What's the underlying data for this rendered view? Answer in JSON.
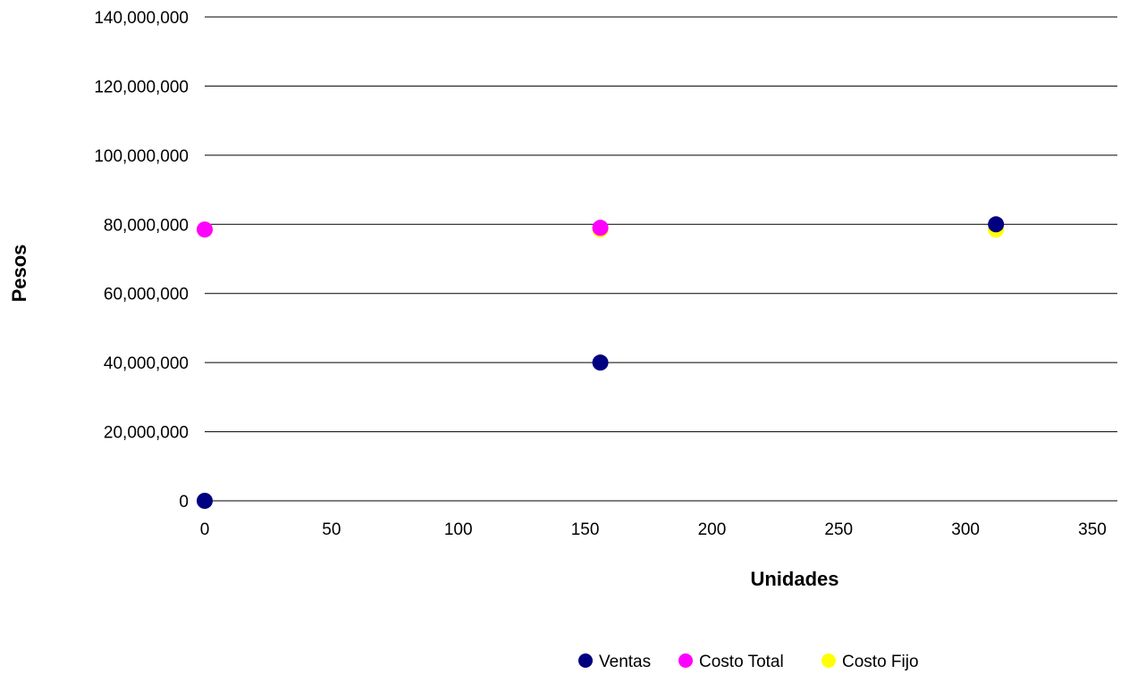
{
  "chart_data": {
    "type": "scatter",
    "title": "",
    "xlabel": "Unidades",
    "ylabel": "Pesos",
    "xlim": [
      0,
      350
    ],
    "ylim": [
      0,
      140000000
    ],
    "x_ticks": [
      0,
      50,
      100,
      150,
      200,
      250,
      300,
      350
    ],
    "y_ticks": [
      0,
      20000000,
      40000000,
      60000000,
      80000000,
      100000000,
      120000000,
      140000000
    ],
    "x_tick_labels": [
      "0",
      "50",
      "100",
      "150",
      "200",
      "250",
      "300",
      "350"
    ],
    "y_tick_labels": [
      "0",
      "20,000,000",
      "40,000,000",
      "60,000,000",
      "80,000,000",
      "100,000,000",
      "120,000,000",
      "140,000,000"
    ],
    "grid": "horizontal",
    "legend_position": "bottom-right",
    "series": [
      {
        "name": "Costo Fijo",
        "color": "#ffff00",
        "points": [
          [
            0,
            78500000
          ],
          [
            156,
            78500000
          ],
          [
            312,
            78500000
          ]
        ]
      },
      {
        "name": "Costo Total",
        "color": "#ff00ff",
        "points": [
          [
            0,
            78500000
          ],
          [
            156,
            79000000
          ]
        ]
      },
      {
        "name": "Ventas",
        "color": "#000080",
        "points": [
          [
            0,
            0
          ],
          [
            156,
            40000000
          ],
          [
            312,
            80000000
          ]
        ]
      }
    ],
    "legend_order": [
      "Ventas",
      "Costo Total",
      "Costo Fijo"
    ]
  }
}
